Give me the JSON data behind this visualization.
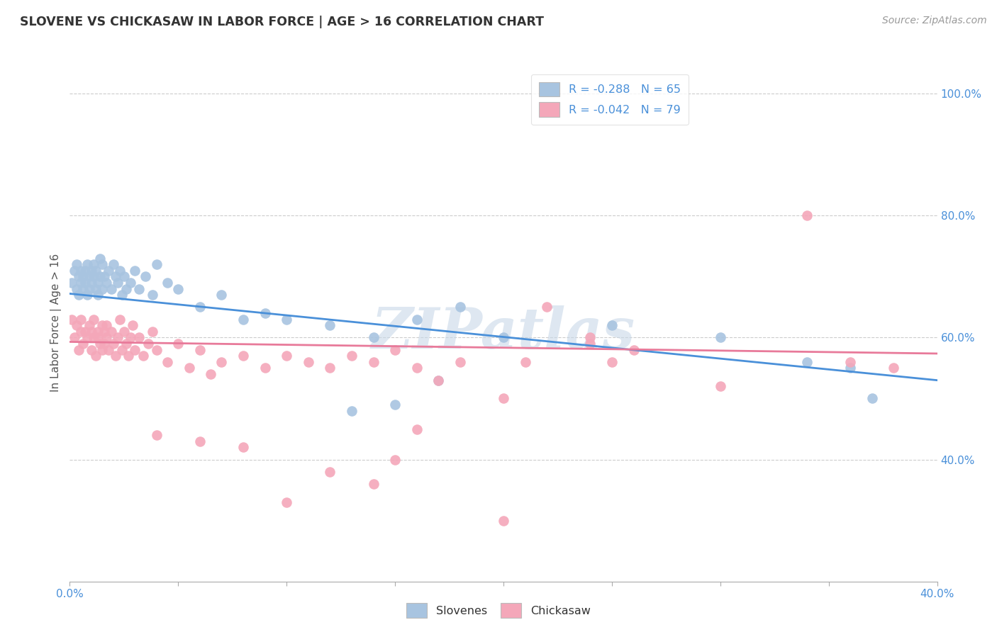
{
  "title": "SLOVENE VS CHICKASAW IN LABOR FORCE | AGE > 16 CORRELATION CHART",
  "source": "Source: ZipAtlas.com",
  "ylabel": "In Labor Force | Age > 16",
  "xlim": [
    0.0,
    0.4
  ],
  "ylim": [
    0.2,
    1.05
  ],
  "yticks_right": [
    0.4,
    0.6,
    0.8,
    1.0
  ],
  "ytick_right_labels": [
    "40.0%",
    "60.0%",
    "80.0%",
    "100.0%"
  ],
  "xtick_positions": [
    0.0,
    0.05,
    0.1,
    0.15,
    0.2,
    0.25,
    0.3,
    0.35,
    0.4
  ],
  "xtick_labels": [
    "0.0%",
    "",
    "",
    "",
    "",
    "",
    "",
    "",
    "40.0%"
  ],
  "slovene_color": "#a8c4e0",
  "chickasaw_color": "#f4a7b9",
  "slovene_line_color": "#4a90d9",
  "chickasaw_line_color": "#e87a9a",
  "legend_slovene_label": "R = -0.288   N = 65",
  "legend_chickasaw_label": "R = -0.042   N = 79",
  "watermark": "ZIPatlas",
  "slovene_intercept": 0.672,
  "slovene_slope": -0.355,
  "chickasaw_intercept": 0.593,
  "chickasaw_slope": -0.048,
  "slovene_x": [
    0.001,
    0.002,
    0.003,
    0.003,
    0.004,
    0.004,
    0.005,
    0.005,
    0.006,
    0.006,
    0.007,
    0.007,
    0.008,
    0.008,
    0.009,
    0.009,
    0.01,
    0.01,
    0.011,
    0.011,
    0.012,
    0.012,
    0.013,
    0.013,
    0.014,
    0.014,
    0.015,
    0.015,
    0.016,
    0.017,
    0.018,
    0.019,
    0.02,
    0.021,
    0.022,
    0.023,
    0.024,
    0.025,
    0.026,
    0.028,
    0.03,
    0.032,
    0.035,
    0.038,
    0.04,
    0.045,
    0.05,
    0.06,
    0.07,
    0.08,
    0.09,
    0.1,
    0.12,
    0.14,
    0.16,
    0.18,
    0.2,
    0.25,
    0.3,
    0.34,
    0.36,
    0.37,
    0.13,
    0.15,
    0.17
  ],
  "slovene_y": [
    0.69,
    0.71,
    0.68,
    0.72,
    0.7,
    0.67,
    0.71,
    0.69,
    0.7,
    0.68,
    0.71,
    0.69,
    0.72,
    0.67,
    0.7,
    0.68,
    0.71,
    0.69,
    0.7,
    0.72,
    0.68,
    0.71,
    0.69,
    0.67,
    0.7,
    0.73,
    0.68,
    0.72,
    0.7,
    0.69,
    0.71,
    0.68,
    0.72,
    0.7,
    0.69,
    0.71,
    0.67,
    0.7,
    0.68,
    0.69,
    0.71,
    0.68,
    0.7,
    0.67,
    0.72,
    0.69,
    0.68,
    0.65,
    0.67,
    0.63,
    0.64,
    0.63,
    0.62,
    0.6,
    0.63,
    0.65,
    0.6,
    0.62,
    0.6,
    0.56,
    0.55,
    0.5,
    0.48,
    0.49,
    0.53
  ],
  "chickasaw_x": [
    0.001,
    0.002,
    0.003,
    0.004,
    0.005,
    0.005,
    0.006,
    0.007,
    0.008,
    0.009,
    0.01,
    0.01,
    0.011,
    0.011,
    0.012,
    0.013,
    0.013,
    0.014,
    0.015,
    0.015,
    0.016,
    0.016,
    0.017,
    0.017,
    0.018,
    0.019,
    0.02,
    0.021,
    0.022,
    0.023,
    0.024,
    0.025,
    0.026,
    0.027,
    0.028,
    0.029,
    0.03,
    0.032,
    0.034,
    0.036,
    0.038,
    0.04,
    0.045,
    0.05,
    0.055,
    0.06,
    0.065,
    0.07,
    0.08,
    0.09,
    0.1,
    0.11,
    0.12,
    0.13,
    0.14,
    0.15,
    0.16,
    0.17,
    0.18,
    0.2,
    0.21,
    0.22,
    0.24,
    0.25,
    0.26,
    0.04,
    0.06,
    0.08,
    0.1,
    0.12,
    0.14,
    0.16,
    0.2,
    0.24,
    0.3,
    0.34,
    0.36,
    0.38,
    0.15
  ],
  "chickasaw_y": [
    0.63,
    0.6,
    0.62,
    0.58,
    0.61,
    0.63,
    0.59,
    0.61,
    0.6,
    0.62,
    0.58,
    0.61,
    0.6,
    0.63,
    0.57,
    0.61,
    0.6,
    0.59,
    0.62,
    0.58,
    0.61,
    0.59,
    0.6,
    0.62,
    0.58,
    0.61,
    0.59,
    0.57,
    0.6,
    0.63,
    0.58,
    0.61,
    0.59,
    0.57,
    0.6,
    0.62,
    0.58,
    0.6,
    0.57,
    0.59,
    0.61,
    0.58,
    0.56,
    0.59,
    0.55,
    0.58,
    0.54,
    0.56,
    0.57,
    0.55,
    0.57,
    0.56,
    0.55,
    0.57,
    0.56,
    0.58,
    0.55,
    0.53,
    0.56,
    0.5,
    0.56,
    0.65,
    0.59,
    0.56,
    0.58,
    0.44,
    0.43,
    0.42,
    0.33,
    0.38,
    0.36,
    0.45,
    0.3,
    0.6,
    0.52,
    0.8,
    0.56,
    0.55,
    0.4
  ]
}
